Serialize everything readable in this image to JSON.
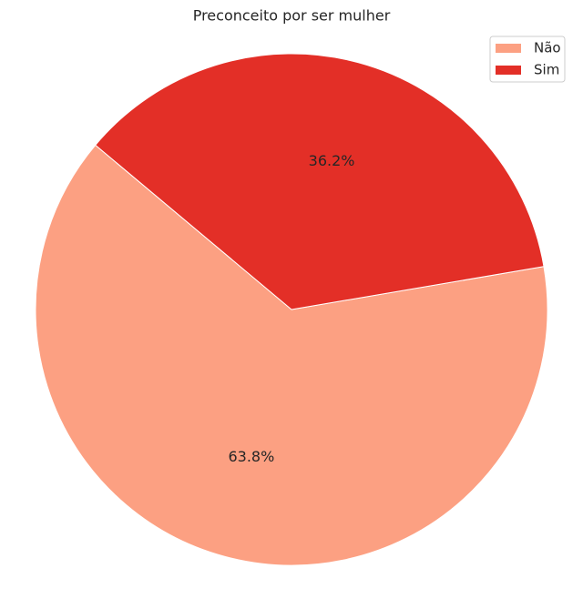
{
  "chart_data": {
    "type": "pie",
    "title": "Preconceito por ser mulher",
    "categories": [
      "Não",
      "Sim"
    ],
    "values": [
      63.8,
      36.2
    ],
    "value_labels": [
      "63.8%",
      "36.2%"
    ],
    "colors": [
      "#fca082",
      "#e32f27"
    ],
    "start_angle": 140,
    "legend": "upper right"
  }
}
